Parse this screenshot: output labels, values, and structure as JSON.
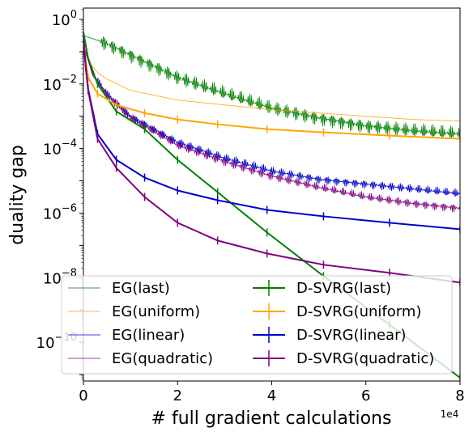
{
  "chart_data": {
    "type": "line",
    "xlabel": "# full gradient calculations",
    "ylabel": "duality gap",
    "x_offset_label": "1e4",
    "x_ticks": [
      0,
      2,
      4,
      6,
      8
    ],
    "y_ticks": [
      {
        "exp": 0,
        "base": "10",
        "sup": "0"
      },
      {
        "exp": -2,
        "base": "10",
        "sup": "−2"
      },
      {
        "exp": -4,
        "base": "10",
        "sup": "−4"
      },
      {
        "exp": -6,
        "base": "10",
        "sup": "−6"
      },
      {
        "exp": -8,
        "base": "10",
        "sup": "−8"
      },
      {
        "exp": -10,
        "base": "10",
        "sup": "−10"
      }
    ],
    "xlim": [
      0,
      8
    ],
    "ylim_log10": [
      -11.2,
      0.35
    ],
    "y_scale": "log",
    "legend_position": "lower center",
    "series": [
      {
        "name": "EG(last)",
        "kind": "thin",
        "color": "#008000",
        "x": [
          0,
          0.5,
          1,
          2,
          3,
          4,
          5,
          6,
          7,
          8
        ],
        "log10y": [
          -0.5,
          -0.75,
          -1.1,
          -1.8,
          -2.3,
          -2.75,
          -3.05,
          -3.3,
          -3.45,
          -3.55
        ],
        "oscillation": 0.25
      },
      {
        "name": "EG(uniform)",
        "kind": "thin",
        "color": "#ffa500",
        "x": [
          0,
          0.1,
          0.3,
          0.5,
          1,
          2,
          3,
          4,
          5,
          6,
          7,
          8
        ],
        "log10y": [
          -0.6,
          -1.3,
          -1.65,
          -1.85,
          -2.2,
          -2.5,
          -2.65,
          -2.8,
          -2.9,
          -3.0,
          -3.1,
          -3.15
        ],
        "oscillation": 0
      },
      {
        "name": "EG(linear)",
        "kind": "thin",
        "color": "#0000cd",
        "x": [
          0,
          0.2,
          0.5,
          1,
          2,
          3,
          4,
          5,
          6,
          7,
          8
        ],
        "log10y": [
          -0.8,
          -1.7,
          -2.3,
          -3.0,
          -3.8,
          -4.3,
          -4.7,
          -4.95,
          -5.1,
          -5.25,
          -5.4
        ],
        "oscillation": 0.15
      },
      {
        "name": "EG(quadratic)",
        "kind": "thin",
        "color": "#800080",
        "x": [
          0,
          0.2,
          0.5,
          1,
          2,
          3,
          4,
          5,
          6,
          7,
          8
        ],
        "log10y": [
          -0.8,
          -1.75,
          -2.35,
          -3.05,
          -3.9,
          -4.4,
          -4.85,
          -5.2,
          -5.5,
          -5.7,
          -5.85
        ],
        "oscillation": 0.15
      },
      {
        "name": "D-SVRG(last)",
        "kind": "errorbar",
        "color": "#008000",
        "x": [
          0,
          0.1,
          0.3,
          0.7,
          1.3,
          2.0,
          2.85,
          3.9,
          5.1,
          6.5,
          8.0
        ],
        "log10y": [
          -0.4,
          -1.2,
          -2.0,
          -2.85,
          -3.4,
          -4.35,
          -5.35,
          -6.6,
          -7.95,
          -9.45,
          -11.1
        ]
      },
      {
        "name": "D-SVRG(uniform)",
        "kind": "errorbar",
        "color": "#ffa500",
        "x": [
          0,
          0.05,
          0.1,
          0.3,
          0.7,
          1.3,
          2.0,
          2.85,
          3.9,
          5.1,
          6.5,
          8.0
        ],
        "log10y": [
          -0.6,
          -1.3,
          -1.8,
          -2.3,
          -2.65,
          -2.9,
          -3.1,
          -3.25,
          -3.4,
          -3.5,
          -3.6,
          -3.7
        ]
      },
      {
        "name": "D-SVRG(linear)",
        "kind": "errorbar",
        "color": "#0000cd",
        "x": [
          0,
          0.05,
          0.1,
          0.3,
          0.7,
          1.3,
          2.0,
          2.85,
          3.9,
          5.1,
          6.5,
          8.0
        ],
        "log10y": [
          -0.6,
          -1.5,
          -2.15,
          -3.55,
          -4.35,
          -4.9,
          -5.3,
          -5.6,
          -5.9,
          -6.1,
          -6.3,
          -6.5
        ]
      },
      {
        "name": "D-SVRG(quadratic)",
        "kind": "errorbar",
        "color": "#800080",
        "x": [
          0,
          0.05,
          0.1,
          0.3,
          0.7,
          1.3,
          2.0,
          2.85,
          3.9,
          5.1,
          6.5,
          8.0
        ],
        "log10y": [
          -0.6,
          -1.5,
          -2.2,
          -3.7,
          -4.6,
          -5.5,
          -6.3,
          -6.85,
          -7.25,
          -7.6,
          -7.85,
          -8.15
        ]
      }
    ]
  }
}
